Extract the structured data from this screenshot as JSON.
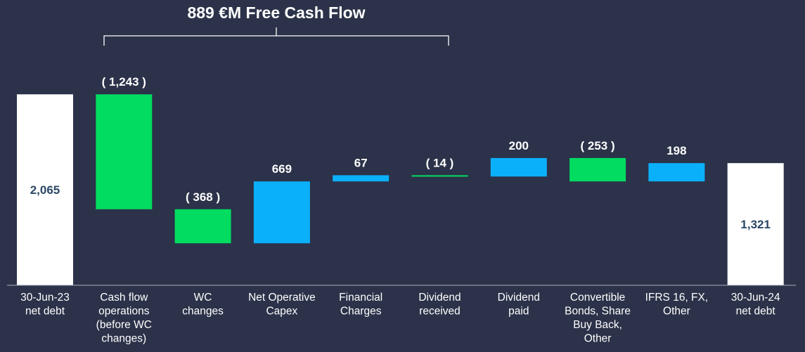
{
  "chart_data": {
    "type": "waterfall",
    "title": "889 €M Free Cash Flow",
    "bracket_categories": [
      "Cash flow operations (before WC changes)",
      "Dividend received"
    ],
    "colors": {
      "increase": "#0bb0fb",
      "decrease": "#02dc61",
      "total": "#ffffff",
      "total_label": "#2b4766",
      "background": "#2b3249",
      "text": "#ffffff"
    },
    "categories": [
      "30-Jun-23 net debt",
      "Cash flow operations (before WC changes)",
      "WC changes",
      "Net Operative Capex",
      "Financial Charges",
      "Dividend received",
      "Dividend paid",
      "Convertible Bonds, Share Buy Back, Other",
      "IFRS 16, FX, Other",
      "30-Jun-24 net debt"
    ],
    "category_lines": [
      [
        "30-Jun-23",
        "net debt"
      ],
      [
        "Cash flow",
        "operations",
        "(before WC",
        "changes)"
      ],
      [
        "WC",
        "changes"
      ],
      [
        "Net Operative",
        "Capex"
      ],
      [
        "Financial",
        "Charges"
      ],
      [
        "Dividend",
        "received"
      ],
      [
        "Dividend",
        "paid"
      ],
      [
        "Convertible",
        "Bonds, Share",
        "Buy Back,",
        "Other"
      ],
      [
        "IFRS 16, FX,",
        "Other"
      ],
      [
        "30-Jun-24",
        "net debt"
      ]
    ],
    "values": [
      2065,
      -1243,
      -368,
      669,
      67,
      -14,
      200,
      -253,
      198,
      1321
    ],
    "kinds": [
      "total",
      "delta",
      "delta",
      "delta",
      "delta",
      "delta",
      "delta",
      "delta",
      "delta",
      "total"
    ],
    "labels": [
      "2,065",
      "( 1,243 )",
      "( 368 )",
      "669",
      "67",
      "( 14 )",
      "200",
      "( 253 )",
      "198",
      "1,321"
    ],
    "units": "€M"
  }
}
